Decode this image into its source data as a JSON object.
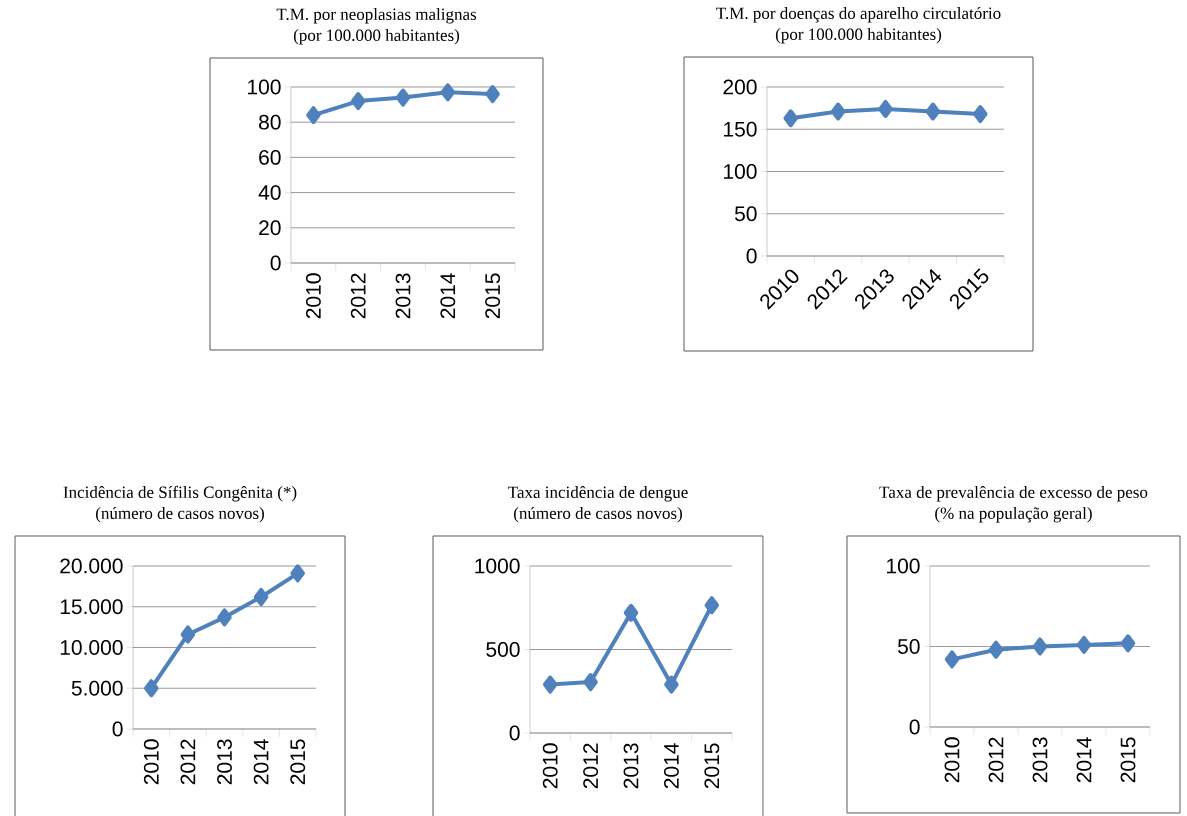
{
  "chart_data": [
    {
      "type": "line",
      "title": "T.M. por neoplasias malignas",
      "subtitle": "(por 100.000 habitantes)",
      "categories": [
        "2010",
        "2012",
        "2013",
        "2014",
        "2015"
      ],
      "values": [
        84,
        92,
        94,
        97,
        96
      ],
      "color": "#4f81bd",
      "ylim": [
        0,
        100
      ],
      "yticks": [
        0,
        20,
        40,
        60,
        80,
        100
      ],
      "grid": "y",
      "marker": "diamond"
    },
    {
      "type": "line",
      "title": "T.M. por doenças do aparelho circulatório",
      "subtitle": "(por 100.000 habitantes)",
      "categories": [
        "2010",
        "2012",
        "2013",
        "2014",
        "2015"
      ],
      "values": [
        163,
        171,
        174,
        171,
        168
      ],
      "color": "#4f81bd",
      "ylim": [
        0,
        200
      ],
      "yticks": [
        0,
        50,
        100,
        150,
        200
      ],
      "grid": "y",
      "marker": "diamond"
    },
    {
      "type": "line",
      "title": "Incidência de Sífilis Congênita (*)",
      "subtitle": "(número de casos novos)",
      "categories": [
        "2010",
        "2012",
        "2013",
        "2014",
        "2015"
      ],
      "values": [
        5000,
        11600,
        13700,
        16200,
        19100
      ],
      "color": "#4f81bd",
      "ylim": [
        0,
        20000
      ],
      "yticks": [
        0,
        {
          "value": 5000,
          "label": "5.000"
        },
        {
          "value": 10000,
          "label": "10.000"
        },
        {
          "value": 15000,
          "label": "15.000"
        },
        {
          "value": 20000,
          "label": "20.000"
        }
      ],
      "grid": "y",
      "marker": "diamond"
    },
    {
      "type": "line",
      "title": "Taxa incidência de dengue",
      "subtitle": "(número de casos novos)",
      "categories": [
        "2010",
        "2012",
        "2013",
        "2014",
        "2015"
      ],
      "values": [
        290,
        305,
        720,
        290,
        765
      ],
      "color": "#4f81bd",
      "ylim": [
        0,
        1000
      ],
      "yticks": [
        0,
        500,
        1000
      ],
      "grid": "y",
      "marker": "diamond"
    },
    {
      "type": "line",
      "title": "Taxa de prevalência de excesso de peso",
      "subtitle": "(% na população geral)",
      "categories": [
        "2010",
        "2012",
        "2013",
        "2014",
        "2015"
      ],
      "values": [
        42,
        48,
        50,
        51,
        52
      ],
      "color": "#4f81bd",
      "ylim": [
        0,
        100
      ],
      "yticks": [
        0,
        50,
        100
      ],
      "grid": "y",
      "marker": "diamond"
    }
  ]
}
